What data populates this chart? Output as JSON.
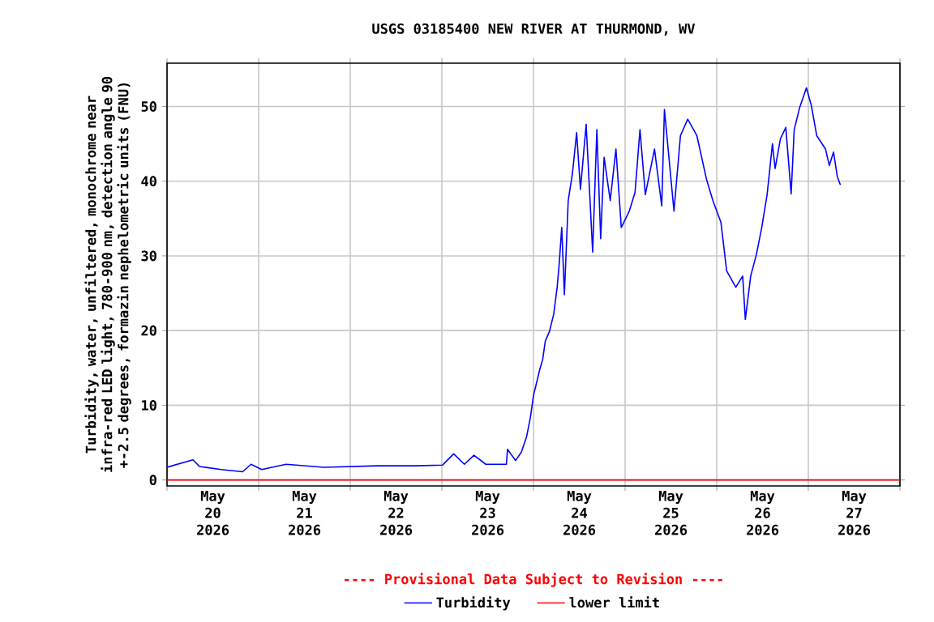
{
  "chart_data": {
    "type": "line",
    "title": "USGS 03185400 NEW RIVER AT THURMOND, WV",
    "ylabel": "Turbidity, water, unfiltered, monochrome near infra-red LED light, 780-900 nm, detection angle 90 +-2.5 degrees, formazin nephelometric units (FNU)",
    "annotations": [
      "---- Provisional Data Subject to Revision ----"
    ],
    "xlim": [
      "2026-05-20T00:00",
      "2026-05-28T00:00"
    ],
    "xticks": [
      {
        "value": "2026-05-20T00:00",
        "label": null
      },
      {
        "value": "2026-05-21T00:00",
        "label": null
      },
      {
        "value": "2026-05-22T00:00",
        "label": null
      },
      {
        "value": "2026-05-23T00:00",
        "label": null
      },
      {
        "value": "2026-05-24T00:00",
        "label": null
      },
      {
        "value": "2026-05-25T00:00",
        "label": null
      },
      {
        "value": "2026-05-26T00:00",
        "label": null
      },
      {
        "value": "2026-05-27T00:00",
        "label": null
      },
      {
        "value": "2026-05-28T00:00",
        "label": null
      },
      {
        "value": "2026-05-20T12:00",
        "label": "May 20 2026"
      },
      {
        "value": "2026-05-21T12:00",
        "label": "May 21 2026"
      },
      {
        "value": "2026-05-22T12:00",
        "label": "May 22 2026"
      },
      {
        "value": "2026-05-23T12:00",
        "label": "May 23 2026"
      },
      {
        "value": "2026-05-24T12:00",
        "label": "May 24 2026"
      },
      {
        "value": "2026-05-25T12:00",
        "label": "May 25 2026"
      },
      {
        "value": "2026-05-26T12:00",
        "label": "May 26 2026"
      },
      {
        "value": "2026-05-27T12:00",
        "label": "May 27 2026"
      }
    ],
    "ylim": [
      -0.8,
      55.8
    ],
    "yticks": [
      0,
      10,
      20,
      30,
      40,
      50
    ],
    "grid": true,
    "legend": "bottom",
    "series": [
      {
        "name": "Turbidity",
        "color": "#0000ff",
        "x": [
          "2026-05-20T00:00",
          "2026-05-20T06:48",
          "2026-05-20T08:30",
          "2026-05-20T14:12",
          "2026-05-20T19:48",
          "2026-05-20T22:00",
          "2026-05-21T00:48",
          "2026-05-21T07:12",
          "2026-05-21T17:06",
          "2026-05-22T07:12",
          "2026-05-22T17:12",
          "2026-05-23T00:12",
          "2026-05-23T03:06",
          "2026-05-23T05:54",
          "2026-05-23T08:24",
          "2026-05-23T11:30",
          "2026-05-23T16:54",
          "2026-05-23T17:12",
          "2026-05-23T19:18",
          "2026-05-23T20:48",
          "2026-05-23T22:12",
          "2026-05-23T23:12",
          "2026-05-24T00:00",
          "2026-05-24T01:42",
          "2026-05-24T02:24",
          "2026-05-24T03:06",
          "2026-05-24T04:12",
          "2026-05-24T05:18",
          "2026-05-24T06:12",
          "2026-05-24T06:42",
          "2026-05-24T07:24",
          "2026-05-24T08:06",
          "2026-05-24T09:06",
          "2026-05-24T10:12",
          "2026-05-24T11:18",
          "2026-05-24T12:18",
          "2026-05-24T13:48",
          "2026-05-24T15:30",
          "2026-05-24T16:36",
          "2026-05-24T17:36",
          "2026-05-24T18:30",
          "2026-05-24T20:06",
          "2026-05-24T21:36",
          "2026-05-24T23:00",
          "2026-05-25T01:06",
          "2026-05-25T02:36",
          "2026-05-25T03:54",
          "2026-05-25T05:18",
          "2026-05-25T07:42",
          "2026-05-25T09:36",
          "2026-05-25T10:18",
          "2026-05-25T12:48",
          "2026-05-25T14:30",
          "2026-05-25T16:24",
          "2026-05-25T18:48",
          "2026-05-25T21:18",
          "2026-05-25T23:00",
          "2026-05-26T01:06",
          "2026-05-26T02:36",
          "2026-05-26T05:00",
          "2026-05-26T06:48",
          "2026-05-26T07:30",
          "2026-05-26T08:54",
          "2026-05-26T10:24",
          "2026-05-26T11:48",
          "2026-05-26T13:12",
          "2026-05-26T14:36",
          "2026-05-26T15:18",
          "2026-05-26T16:42",
          "2026-05-26T18:06",
          "2026-05-26T19:30",
          "2026-05-26T20:18",
          "2026-05-26T21:42",
          "2026-05-26T23:30",
          "2026-05-27T00:48",
          "2026-05-27T02:12",
          "2026-05-27T04:30",
          "2026-05-27T05:30",
          "2026-05-27T06:36",
          "2026-05-27T07:36",
          "2026-05-27T08:24"
        ],
        "values": [
          1.7,
          2.7,
          1.8,
          1.4,
          1.1,
          2.1,
          1.4,
          2.1,
          1.7,
          1.9,
          1.9,
          2.0,
          3.5,
          2.1,
          3.3,
          2.1,
          2.1,
          4.1,
          2.6,
          3.7,
          5.8,
          8.4,
          11.3,
          14.9,
          16.1,
          18.6,
          19.9,
          22.2,
          25.8,
          28.7,
          33.8,
          24.8,
          37.4,
          41.0,
          46.5,
          38.9,
          47.6,
          30.5,
          46.9,
          32.3,
          43.2,
          37.4,
          44.3,
          33.8,
          36.0,
          38.5,
          46.9,
          38.2,
          44.3,
          36.7,
          49.6,
          36.0,
          46.1,
          48.3,
          46.1,
          40.3,
          37.4,
          34.5,
          28.0,
          25.8,
          27.3,
          21.5,
          27.3,
          30.2,
          33.8,
          38.2,
          45.0,
          41.7,
          45.7,
          47.2,
          38.3,
          46.9,
          49.8,
          52.5,
          50.1,
          46.1,
          44.3,
          42.1,
          43.9,
          40.6,
          39.5
        ]
      },
      {
        "name": "lower limit",
        "color": "#ff0000",
        "x": [
          "2026-05-20T00:00",
          "2026-05-28T00:00"
        ],
        "values": [
          0,
          0
        ]
      }
    ]
  }
}
